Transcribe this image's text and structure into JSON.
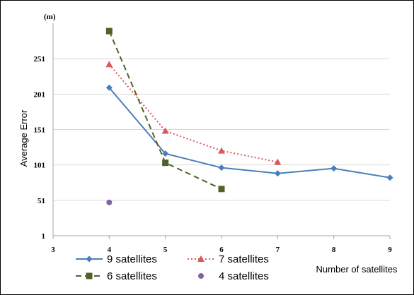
{
  "chart_data": {
    "type": "line",
    "unit_label": "(m)",
    "ylabel": "Average Error",
    "xlabel": "Number of satellites",
    "xlim": [
      3,
      9
    ],
    "ylim": [
      1,
      301
    ],
    "x_ticks": [
      "3",
      "4",
      "5",
      "6",
      "7",
      "8",
      "9"
    ],
    "y_ticks": [
      "1",
      "51",
      "101",
      "151",
      "201",
      "251"
    ],
    "grid": "horizontal",
    "series": [
      {
        "name": "9 satellites",
        "color": "#4a7ebb",
        "style": "solid",
        "marker": "diamond",
        "x": [
          4,
          5,
          6,
          7,
          8,
          9
        ],
        "y": [
          210,
          117,
          97,
          89,
          96,
          83
        ]
      },
      {
        "name": "7 satellites",
        "color": "#d9595c",
        "style": "dotted",
        "marker": "triangle",
        "x": [
          4,
          5,
          6,
          7
        ],
        "y": [
          243,
          149,
          121,
          105
        ]
      },
      {
        "name": "6 satellites",
        "color": "#4f6228",
        "style": "dashed",
        "marker": "square",
        "x": [
          4,
          5,
          6
        ],
        "y": [
          290,
          104,
          67
        ]
      },
      {
        "name": "4 satellites",
        "color": "#8064a2",
        "style": "none",
        "marker": "circle",
        "x": [
          4
        ],
        "y": [
          48
        ]
      }
    ]
  }
}
